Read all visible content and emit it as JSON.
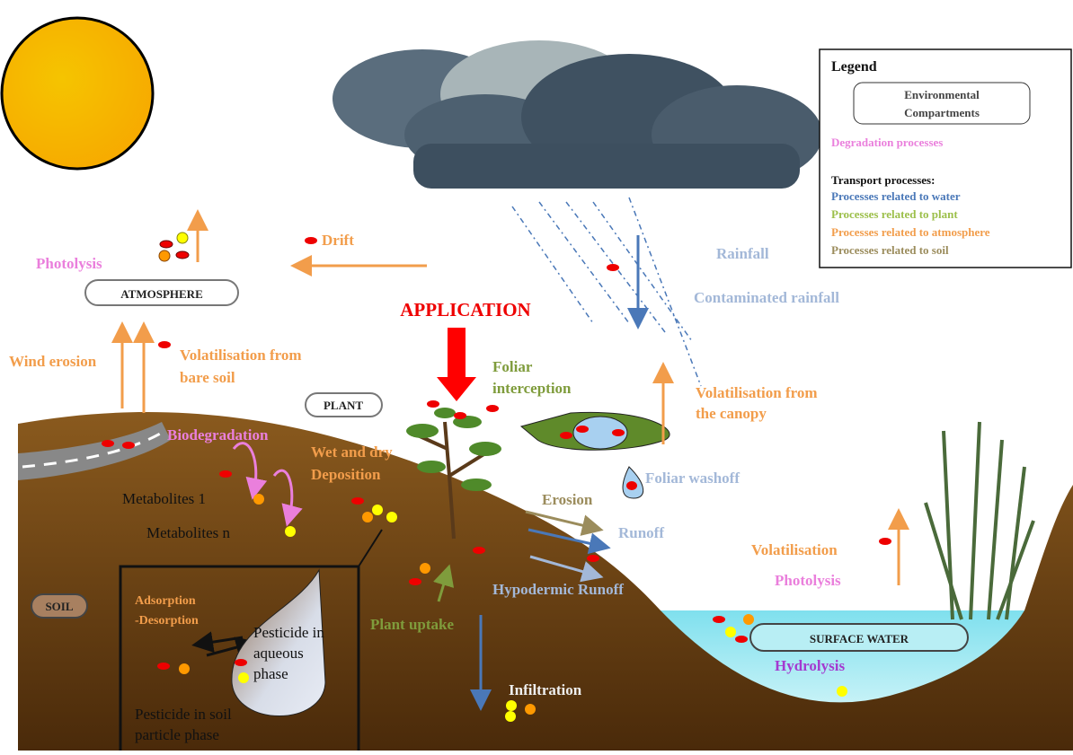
{
  "legend": {
    "title": "Legend",
    "compartments": [
      "Environmental",
      "Compartments"
    ],
    "degradation": "Degradation processes",
    "transport_title": "Transport processes:",
    "water": "Processes related to water",
    "plant": "Processes related to plant",
    "atmosphere": "Processes related to atmosphere",
    "soil": "Processes related to soil"
  },
  "compartments": {
    "atmosphere": "ATMOSPHERE",
    "plant": "PLANT",
    "soil": "SOIL",
    "surface_water": "SURFACE WATER"
  },
  "labels": {
    "photolysis_air": "Photolysis",
    "drift": "Drift",
    "application": "APPLICATION",
    "rainfall": "Rainfall",
    "contaminated_rainfall": "Contaminated rainfall",
    "wind_erosion": "Wind erosion",
    "volatilisation_soil": [
      "Volatilisation from",
      "bare soil"
    ],
    "foliar_interception": [
      "Foliar",
      "interception"
    ],
    "volatilisation_canopy": [
      "Volatilisation from",
      "the canopy"
    ],
    "biodegradation": "Biodegradation",
    "deposition": [
      "Wet and dry",
      "Deposition"
    ],
    "foliar_washoff": "Foliar washoff",
    "metabolites_1": "Metabolites 1",
    "metabolites_n": "Metabolites n",
    "erosion": "Erosion",
    "runoff": "Runoff",
    "volatilisation_water": "Volatilisation",
    "photolysis_water": "Photolysis",
    "adsorption": [
      "Adsorption",
      "-Desorption"
    ],
    "aqueous": [
      "Pesticide in",
      "aqueous",
      "phase"
    ],
    "hypodermic_runoff": "Hypodermic Runoff",
    "plant_uptake": "Plant uptake",
    "hydrolysis": "Hydrolysis",
    "infiltration": "Infiltration",
    "soil_particle": [
      "Pesticide in soil",
      "particle phase"
    ]
  }
}
